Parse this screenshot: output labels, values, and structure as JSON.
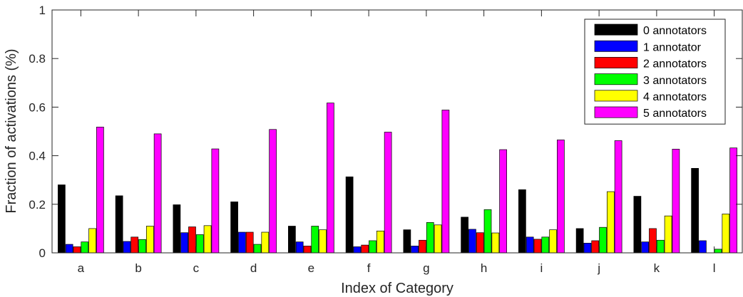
{
  "chart_data": {
    "type": "bar",
    "title": "",
    "xlabel": "Index of Category",
    "ylabel": "Fraction of activations (%)",
    "ylim": [
      0,
      1
    ],
    "yticks": [
      "0",
      "0.2",
      "0.4",
      "0.6",
      "0.8",
      "1"
    ],
    "categories": [
      "a",
      "b",
      "c",
      "d",
      "e",
      "f",
      "g",
      "h",
      "i",
      "j",
      "k",
      "l"
    ],
    "legend_position": "top-right",
    "grid": false,
    "series": [
      {
        "name": "0 annotators",
        "color": "#000000",
        "values": [
          0.28,
          0.235,
          0.198,
          0.21,
          0.11,
          0.313,
          0.095,
          0.147,
          0.26,
          0.1,
          0.233,
          0.348
        ]
      },
      {
        "name": "1 annotator",
        "color": "#0000ff",
        "values": [
          0.035,
          0.047,
          0.083,
          0.085,
          0.045,
          0.025,
          0.028,
          0.097,
          0.065,
          0.04,
          0.045,
          0.05
        ]
      },
      {
        "name": "2 annotators",
        "color": "#ff0000",
        "values": [
          0.025,
          0.065,
          0.107,
          0.085,
          0.028,
          0.032,
          0.052,
          0.083,
          0.056,
          0.05,
          0.1,
          0.0
        ]
      },
      {
        "name": "3 annotators",
        "color": "#00ff00",
        "values": [
          0.045,
          0.055,
          0.075,
          0.035,
          0.11,
          0.05,
          0.125,
          0.178,
          0.065,
          0.105,
          0.052,
          0.015
        ]
      },
      {
        "name": "4 annotators",
        "color": "#ffff00",
        "values": [
          0.1,
          0.11,
          0.112,
          0.085,
          0.095,
          0.09,
          0.115,
          0.082,
          0.095,
          0.252,
          0.152,
          0.16
        ]
      },
      {
        "name": "5 annotators",
        "color": "#ff00ff",
        "values": [
          0.518,
          0.49,
          0.428,
          0.508,
          0.617,
          0.497,
          0.588,
          0.425,
          0.465,
          0.462,
          0.427,
          0.432
        ]
      }
    ]
  }
}
